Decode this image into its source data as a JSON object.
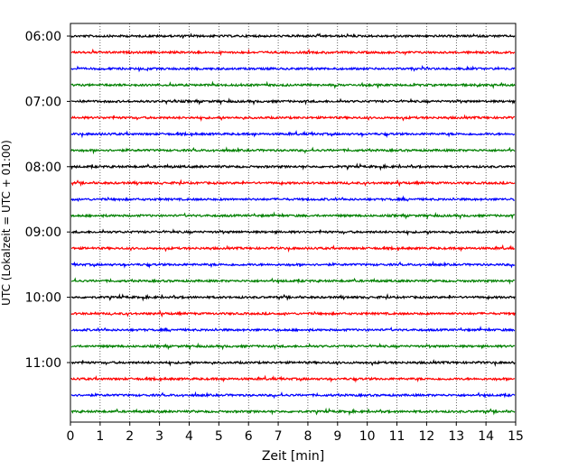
{
  "chart_data": {
    "type": "line",
    "title": "",
    "xlabel": "Zeit  [min]",
    "ylabel": "UTC (Lokalzeit = UTC + 01:00)",
    "xlim": [
      0,
      15
    ],
    "xticks": [
      0,
      1,
      2,
      3,
      4,
      5,
      6,
      7,
      8,
      9,
      10,
      11,
      12,
      13,
      14,
      15
    ],
    "xtick_labels": [
      "0",
      "1",
      "2",
      "3",
      "4",
      "5",
      "6",
      "7",
      "8",
      "9",
      "10",
      "11",
      "12",
      "13",
      "14",
      "15"
    ],
    "ytick_labels": [
      "06:00",
      "07:00",
      "08:00",
      "09:00",
      "10:00",
      "11:00"
    ],
    "vertical_grid": true,
    "trace_interval_minutes": 15,
    "first_trace": "06:00",
    "trace_count": 24,
    "trace_colors": [
      "#000000",
      "#ff0000",
      "#0000ff",
      "#008000"
    ]
  }
}
